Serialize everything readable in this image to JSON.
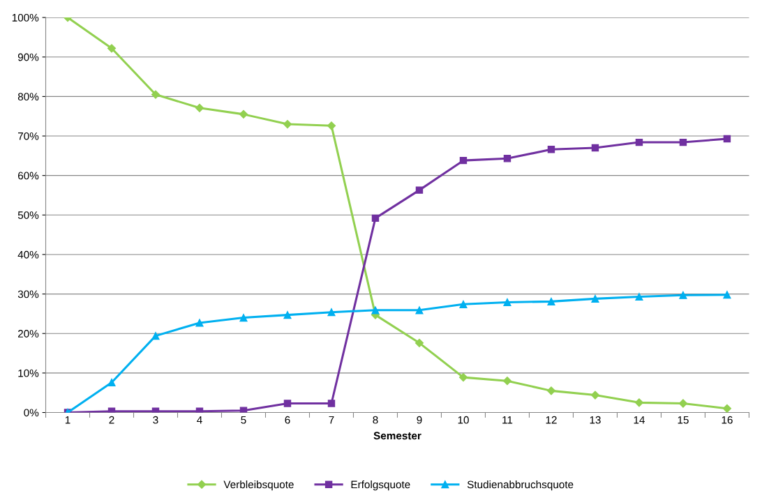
{
  "chart_data": {
    "type": "line",
    "xlabel": "Semester",
    "categories": [
      "1",
      "2",
      "3",
      "4",
      "5",
      "6",
      "7",
      "8",
      "9",
      "10",
      "11",
      "12",
      "13",
      "14",
      "15",
      "16"
    ],
    "series": [
      {
        "name": "Verbleibsquote",
        "color": "#92d050",
        "marker": "diamond",
        "values": [
          100,
          92.2,
          80.5,
          77.1,
          75.5,
          73,
          72.6,
          24.7,
          17.6,
          8.9,
          8,
          5.5,
          4.4,
          2.5,
          2.3,
          1
        ]
      },
      {
        "name": "Erfolgsquote",
        "color": "#7030a0",
        "marker": "square",
        "values": [
          0,
          0.3,
          0.3,
          0.3,
          0.5,
          2.3,
          2.3,
          49.2,
          56.3,
          63.8,
          64.3,
          66.6,
          67,
          68.4,
          68.4,
          69.3
        ]
      },
      {
        "name": "Studienabbruchsquote",
        "color": "#00b0f0",
        "marker": "triangle",
        "values": [
          0,
          7.6,
          19.4,
          22.7,
          24,
          24.7,
          25.4,
          25.9,
          25.9,
          27.4,
          27.9,
          28.1,
          28.8,
          29.3,
          29.7,
          29.8
        ]
      }
    ],
    "ylim": [
      0,
      100
    ],
    "yticks": [
      {
        "value": 0,
        "label": "0%"
      },
      {
        "value": 10,
        "label": "10%"
      },
      {
        "value": 20,
        "label": "20%"
      },
      {
        "value": 30,
        "label": "30%"
      },
      {
        "value": 40,
        "label": "40%"
      },
      {
        "value": 50,
        "label": "50%"
      },
      {
        "value": 60,
        "label": "60%"
      },
      {
        "value": 70,
        "label": "70%"
      },
      {
        "value": 80,
        "label": "80%"
      },
      {
        "value": 90,
        "label": "90%"
      },
      {
        "value": 100,
        "label": "100%"
      }
    ],
    "grid": "y",
    "legend": "bottom",
    "line_style": "solid"
  }
}
